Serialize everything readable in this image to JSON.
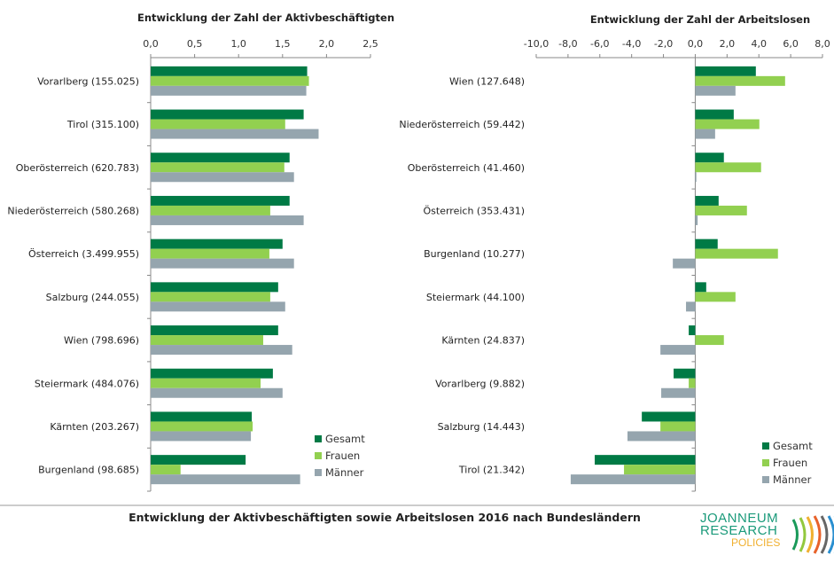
{
  "chart_data": [
    {
      "type": "bar",
      "orientation": "horizontal",
      "title": "Entwicklung der Zahl der Aktivbeschäftigten",
      "xlim": [
        0,
        2.5
      ],
      "ticks": [
        "0,0",
        "0,5",
        "1,0",
        "1,5",
        "2,0",
        "2,5"
      ],
      "tick_values": [
        0,
        0.5,
        1,
        1.5,
        2,
        2.5
      ],
      "legend_position": "bottom-right",
      "categories": [
        "Vorarlberg (155.025)",
        "Tirol (315.100)",
        "Oberösterreich (620.783)",
        "Niederösterreich (580.268)",
        "Österreich (3.499.955)",
        "Salzburg (244.055)",
        "Wien (798.696)",
        "Steiermark (484.076)",
        "Kärnten (203.267)",
        "Burgenland (98.685)"
      ],
      "series": [
        {
          "name": "Gesamt",
          "color": "#007a45",
          "values": [
            1.78,
            1.74,
            1.58,
            1.58,
            1.5,
            1.45,
            1.45,
            1.39,
            1.15,
            1.08
          ]
        },
        {
          "name": "Frauen",
          "color": "#92d050",
          "values": [
            1.8,
            1.53,
            1.52,
            1.36,
            1.35,
            1.36,
            1.28,
            1.25,
            1.16,
            0.34
          ]
        },
        {
          "name": "Männer",
          "color": "#95a5ae",
          "values": [
            1.77,
            1.91,
            1.63,
            1.74,
            1.63,
            1.53,
            1.61,
            1.5,
            1.14,
            1.7
          ]
        }
      ]
    },
    {
      "type": "bar",
      "orientation": "horizontal",
      "title": "Entwicklung der Zahl der Arbeitslosen",
      "xlim": [
        -10,
        8
      ],
      "ticks": [
        "-10,0",
        "-8,0",
        "-6,0",
        "-4,0",
        "-2,0",
        "0,0",
        "2,0",
        "4,0",
        "6,0",
        "8,0"
      ],
      "tick_values": [
        -10,
        -8,
        -6,
        -4,
        -2,
        0,
        2,
        4,
        6,
        8
      ],
      "legend_position": "bottom-right",
      "categories": [
        "Wien (127.648)",
        "Niederösterreich (59.442)",
        "Oberösterreich (41.460)",
        "Österreich (353.431)",
        "Burgenland (10.277)",
        "Steiermark (44.100)",
        "Kärnten (24.837)",
        "Vorarlberg (9.882)",
        "Salzburg (14.443)",
        "Tirol (21.342)"
      ],
      "series": [
        {
          "name": "Gesamt",
          "color": "#007a45",
          "values": [
            3.81,
            2.42,
            1.8,
            1.47,
            1.41,
            0.69,
            -0.41,
            -1.36,
            -3.36,
            -6.32
          ]
        },
        {
          "name": "Frauen",
          "color": "#92d050",
          "values": [
            5.65,
            4.03,
            4.14,
            3.25,
            5.2,
            2.53,
            1.8,
            -0.41,
            -2.19,
            -4.48
          ]
        },
        {
          "name": "Männer",
          "color": "#95a5ae",
          "values": [
            2.53,
            1.25,
            0.07,
            0.15,
            -1.41,
            -0.58,
            -2.19,
            -2.14,
            -4.26,
            -7.83
          ]
        }
      ]
    }
  ],
  "caption": "Entwicklung der Aktivbeschäftigten sowie Arbeitslosen 2016 nach Bundesländern",
  "logo": {
    "line1": "JOANNEUM",
    "line2": "RESEARCH",
    "line3": "POLICIES"
  }
}
